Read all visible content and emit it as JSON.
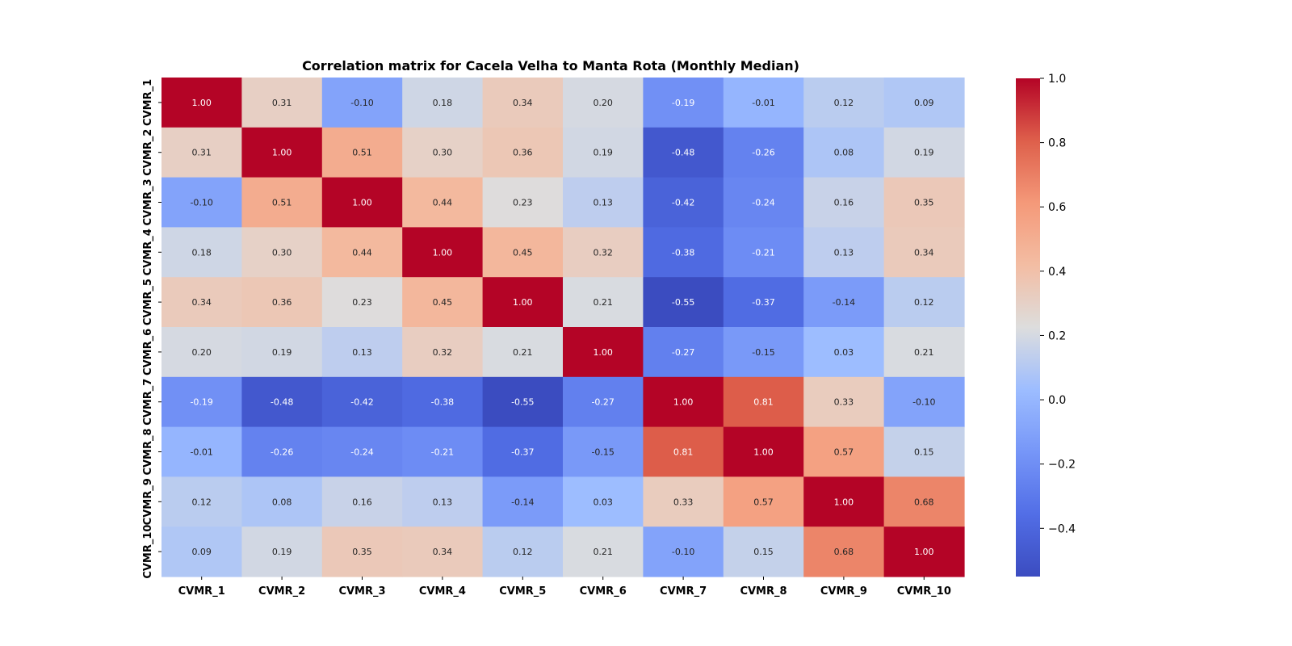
{
  "chart_data": {
    "type": "heatmap",
    "title": "Correlation matrix for Cacela Velha to Manta Rota (Monthly Median)",
    "x_labels": [
      "CVMR_1",
      "CVMR_2",
      "CVMR_3",
      "CVMR_4",
      "CVMR_5",
      "CVMR_6",
      "CVMR_7",
      "CVMR_8",
      "CVMR_9",
      "CVMR_10"
    ],
    "y_labels": [
      "CVMR_1",
      "CVMR_2",
      "CVMR_3",
      "CVMR_4",
      "CVMR_5",
      "CVMR_6",
      "CVMR_7",
      "CVMR_8",
      "CVMR_9",
      "CVMR_10"
    ],
    "values": [
      [
        1.0,
        0.31,
        -0.1,
        0.18,
        0.34,
        0.2,
        -0.19,
        -0.01,
        0.12,
        0.09
      ],
      [
        0.31,
        1.0,
        0.51,
        0.3,
        0.36,
        0.19,
        -0.48,
        -0.26,
        0.08,
        0.19
      ],
      [
        -0.1,
        0.51,
        1.0,
        0.44,
        0.23,
        0.13,
        -0.42,
        -0.24,
        0.16,
        0.35
      ],
      [
        0.18,
        0.3,
        0.44,
        1.0,
        0.45,
        0.32,
        -0.38,
        -0.21,
        0.13,
        0.34
      ],
      [
        0.34,
        0.36,
        0.23,
        0.45,
        1.0,
        0.21,
        -0.55,
        -0.37,
        -0.14,
        0.12
      ],
      [
        0.2,
        0.19,
        0.13,
        0.32,
        0.21,
        1.0,
        -0.27,
        -0.15,
        0.03,
        0.21
      ],
      [
        -0.19,
        -0.48,
        -0.42,
        -0.38,
        -0.55,
        -0.27,
        1.0,
        0.81,
        0.33,
        -0.1
      ],
      [
        -0.01,
        -0.26,
        -0.24,
        -0.21,
        -0.37,
        -0.15,
        0.81,
        1.0,
        0.57,
        0.15
      ],
      [
        0.12,
        0.08,
        0.16,
        0.13,
        -0.14,
        0.03,
        0.33,
        0.57,
        1.0,
        0.68
      ],
      [
        0.09,
        0.19,
        0.35,
        0.34,
        0.12,
        0.21,
        -0.1,
        0.15,
        0.68,
        1.0
      ]
    ],
    "value_format": "0.00",
    "colormap": "coolwarm",
    "color_range": [
      -0.55,
      1.0
    ],
    "colorbar_ticks": [
      1.0,
      0.8,
      0.6,
      0.4,
      0.2,
      0.0,
      -0.2,
      -0.4
    ],
    "colorbar_tick_labels": [
      "1.0",
      "0.8",
      "0.6",
      "0.4",
      "0.2",
      "0.0",
      "−0.2",
      "−0.4"
    ],
    "grid": false,
    "legend": "right"
  }
}
